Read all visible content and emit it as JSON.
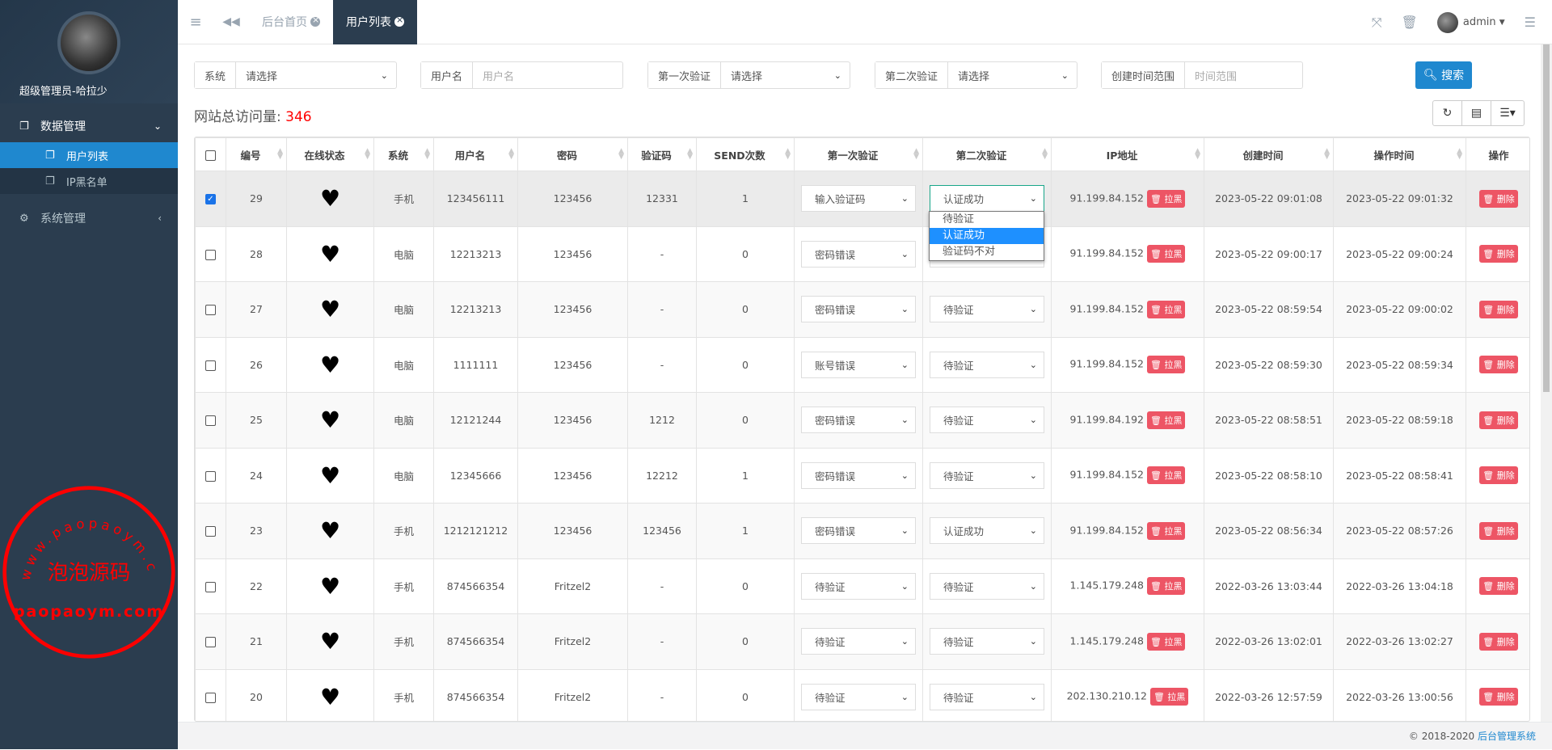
{
  "sidebar": {
    "profile_name": "超级管理员-哈拉少",
    "menu": [
      {
        "label": "数据管理",
        "icon": "copy-icon",
        "expanded": true,
        "children": [
          {
            "label": "用户列表",
            "active": true
          },
          {
            "label": "IP黑名单",
            "active": false
          }
        ]
      },
      {
        "label": "系统管理",
        "icon": "gears-icon",
        "expanded": false
      }
    ]
  },
  "topbar": {
    "tabs": [
      {
        "label": "后台首页",
        "active": false
      },
      {
        "label": "用户列表",
        "active": true
      }
    ],
    "user": "admin"
  },
  "filters": [
    {
      "label": "系统",
      "value": "请选择",
      "type": "select"
    },
    {
      "label": "用户名",
      "placeholder": "用户名",
      "type": "input"
    },
    {
      "label": "第一次验证",
      "value": "请选择",
      "type": "select"
    },
    {
      "label": "第二次验证",
      "value": "请选择",
      "type": "select"
    },
    {
      "label": "创建时间范围",
      "placeholder": "时间范围",
      "type": "input"
    }
  ],
  "search_label": "搜索",
  "visits": {
    "label": "网站总访问量:",
    "count": "346"
  },
  "table": {
    "columns": [
      "编号",
      "在线状态",
      "系统",
      "用户名",
      "密码",
      "验证码",
      "SEND次数",
      "第一次验证",
      "第二次验证",
      "IP地址",
      "创建时间",
      "操作时间",
      "操作"
    ],
    "blacklist_label": "拉黑",
    "delete_label": "删除",
    "rows": [
      {
        "id": "29",
        "online": "♥",
        "system": "手机",
        "username": "123456111",
        "password": "123456",
        "code": "12331",
        "send": "1",
        "first": "输入验证码",
        "second": "认证成功",
        "ip": "91.199.84.152",
        "created": "2023-05-22 09:01:08",
        "operated": "2023-05-22 09:01:32",
        "checked": true
      },
      {
        "id": "28",
        "online": "♥",
        "system": "电脑",
        "username": "12213213",
        "password": "123456",
        "code": "-",
        "send": "0",
        "first": "密码错误",
        "second": "",
        "ip": "91.199.84.152",
        "created": "2023-05-22 09:00:17",
        "operated": "2023-05-22 09:00:24",
        "checked": false
      },
      {
        "id": "27",
        "online": "♥",
        "system": "电脑",
        "username": "12213213",
        "password": "123456",
        "code": "-",
        "send": "0",
        "first": "密码错误",
        "second": "待验证",
        "ip": "91.199.84.152",
        "created": "2023-05-22 08:59:54",
        "operated": "2023-05-22 09:00:02",
        "checked": false
      },
      {
        "id": "26",
        "online": "♥",
        "system": "电脑",
        "username": "1111111",
        "password": "123456",
        "code": "-",
        "send": "0",
        "first": "账号错误",
        "second": "待验证",
        "ip": "91.199.84.152",
        "created": "2023-05-22 08:59:30",
        "operated": "2023-05-22 08:59:34",
        "checked": false
      },
      {
        "id": "25",
        "online": "♥",
        "system": "电脑",
        "username": "12121244",
        "password": "123456",
        "code": "1212",
        "send": "0",
        "first": "密码错误",
        "second": "待验证",
        "ip": "91.199.84.192",
        "created": "2023-05-22 08:58:51",
        "operated": "2023-05-22 08:59:18",
        "checked": false
      },
      {
        "id": "24",
        "online": "♥",
        "system": "电脑",
        "username": "12345666",
        "password": "123456",
        "code": "12212",
        "send": "1",
        "first": "密码错误",
        "second": "待验证",
        "ip": "91.199.84.152",
        "created": "2023-05-22 08:58:10",
        "operated": "2023-05-22 08:58:41",
        "checked": false
      },
      {
        "id": "23",
        "online": "♥",
        "system": "手机",
        "username": "1212121212",
        "password": "123456",
        "code": "123456",
        "send": "1",
        "first": "密码错误",
        "second": "认证成功",
        "ip": "91.199.84.152",
        "created": "2023-05-22 08:56:34",
        "operated": "2023-05-22 08:57:26",
        "checked": false
      },
      {
        "id": "22",
        "online": "♥",
        "system": "手机",
        "username": "874566354",
        "password": "Fritzel2",
        "code": "-",
        "send": "0",
        "first": "待验证",
        "second": "待验证",
        "ip": "1.145.179.248",
        "created": "2022-03-26 13:03:44",
        "operated": "2022-03-26 13:04:18",
        "checked": false
      },
      {
        "id": "21",
        "online": "♥",
        "system": "手机",
        "username": "874566354",
        "password": "Fritzel2",
        "code": "-",
        "send": "0",
        "first": "待验证",
        "second": "待验证",
        "ip": "1.145.179.248",
        "created": "2022-03-26 13:02:01",
        "operated": "2022-03-26 13:02:27",
        "checked": false
      },
      {
        "id": "20",
        "online": "♥",
        "system": "手机",
        "username": "874566354",
        "password": "Fritzel2",
        "code": "-",
        "send": "0",
        "first": "待验证",
        "second": "待验证",
        "ip": "202.130.210.12",
        "created": "2022-03-26 12:57:59",
        "operated": "2022-03-26 13:00:56",
        "checked": false
      }
    ]
  },
  "open_dropdown": {
    "options": [
      "待验证",
      "认证成功",
      "验证码不对"
    ],
    "highlighted": "认证成功"
  },
  "watermark": {
    "text_arc": "www.paopaoym.com",
    "text_center": "泡泡源码",
    "text_bottom": "paopaoym.com",
    "color": "#ff0000"
  },
  "footer": {
    "copyright": "© 2018-2020",
    "system_name": "后台管理系统"
  },
  "colors": {
    "sidebar": "#2b3d4f",
    "primary": "#1f88cf",
    "danger": "#ed5565"
  }
}
